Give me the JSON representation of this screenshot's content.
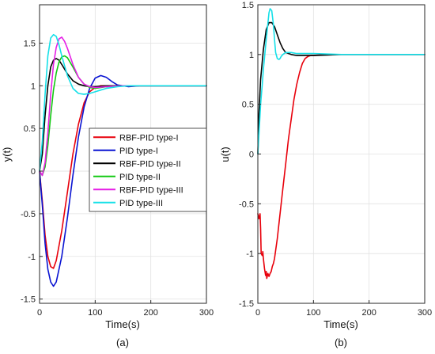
{
  "chart_data": [
    {
      "type": "line",
      "subtitle": "(a)",
      "xlabel": "Time(s)",
      "ylabel": "y(t)",
      "xlim": [
        0,
        300
      ],
      "ylim": [
        -1.55,
        1.95
      ],
      "xticks": [
        0,
        100,
        200,
        300
      ],
      "yticks": [
        -1.5,
        -1,
        -0.5,
        0,
        0.5,
        1,
        1.5
      ],
      "ytick_labels": [
        "-1.5",
        "-1",
        "-0.5",
        "0",
        "0.5",
        "1",
        "1.5"
      ],
      "grid": true,
      "legend_position": "center-right",
      "series": [
        {
          "name": "RBF-PID type-I",
          "color": "#e8000b",
          "x": [
            0,
            5,
            10,
            15,
            20,
            25,
            30,
            40,
            50,
            60,
            70,
            80,
            90,
            100,
            110,
            120,
            140,
            160,
            200,
            250,
            300
          ],
          "y": [
            0,
            -0.35,
            -0.75,
            -1.0,
            -1.12,
            -1.14,
            -1.05,
            -0.7,
            -0.25,
            0.2,
            0.55,
            0.8,
            0.93,
            0.98,
            1.0,
            1.0,
            1.0,
            1.0,
            1.0,
            1.0,
            1.0
          ]
        },
        {
          "name": "PID type-I",
          "color": "#0a14d2",
          "x": [
            0,
            5,
            10,
            15,
            20,
            25,
            30,
            40,
            50,
            60,
            70,
            80,
            90,
            100,
            110,
            120,
            130,
            140,
            160,
            180,
            200,
            250,
            300
          ],
          "y": [
            0,
            -0.4,
            -0.85,
            -1.15,
            -1.3,
            -1.35,
            -1.3,
            -1.0,
            -0.55,
            -0.05,
            0.4,
            0.75,
            0.97,
            1.09,
            1.12,
            1.1,
            1.05,
            1.01,
            0.99,
            1.0,
            1.0,
            1.0,
            1.0
          ]
        },
        {
          "name": "RBF-PID type-II",
          "color": "#000000",
          "x": [
            0,
            5,
            10,
            15,
            20,
            25,
            30,
            35,
            40,
            50,
            60,
            70,
            80,
            90,
            100,
            120,
            150,
            200,
            300
          ],
          "y": [
            0,
            0.2,
            0.65,
            1.0,
            1.22,
            1.3,
            1.32,
            1.3,
            1.25,
            1.14,
            1.06,
            1.02,
            1.0,
            0.99,
            0.99,
            1.0,
            1.0,
            1.0,
            1.0
          ]
        },
        {
          "name": "PID type-II",
          "color": "#12c912",
          "x": [
            0,
            5,
            10,
            15,
            20,
            25,
            30,
            35,
            40,
            45,
            50,
            60,
            70,
            80,
            90,
            100,
            120,
            150,
            200,
            300
          ],
          "y": [
            0,
            -0.05,
            0.05,
            0.3,
            0.65,
            0.95,
            1.15,
            1.28,
            1.34,
            1.35,
            1.33,
            1.22,
            1.1,
            1.02,
            0.98,
            0.97,
            0.99,
            1.0,
            1.0,
            1.0
          ]
        },
        {
          "name": "RBF-PID type-III",
          "color": "#e61ee6",
          "x": [
            0,
            5,
            10,
            15,
            20,
            25,
            30,
            35,
            40,
            45,
            50,
            60,
            70,
            80,
            90,
            100,
            120,
            150,
            200,
            300
          ],
          "y": [
            0,
            -0.05,
            0.1,
            0.45,
            0.9,
            1.25,
            1.45,
            1.55,
            1.57,
            1.52,
            1.44,
            1.25,
            1.1,
            1.02,
            0.99,
            0.98,
            0.99,
            1.0,
            1.0,
            1.0
          ]
        },
        {
          "name": "PID type-III",
          "color": "#16e0e8",
          "x": [
            0,
            5,
            10,
            15,
            20,
            25,
            30,
            35,
            40,
            50,
            60,
            70,
            80,
            90,
            100,
            110,
            120,
            140,
            160,
            200,
            300
          ],
          "y": [
            0,
            0.35,
            0.9,
            1.35,
            1.56,
            1.6,
            1.58,
            1.48,
            1.35,
            1.12,
            0.97,
            0.91,
            0.9,
            0.91,
            0.93,
            0.95,
            0.97,
            0.99,
            1.0,
            1.0,
            1.0
          ]
        }
      ]
    },
    {
      "type": "line",
      "subtitle": "(b)",
      "xlabel": "Time(s)",
      "ylabel": "u(t)",
      "xlim": [
        0,
        300
      ],
      "ylim": [
        -1.5,
        1.5
      ],
      "xticks": [
        0,
        100,
        200,
        300
      ],
      "yticks": [
        -1.5,
        -1,
        -0.5,
        0,
        0.5,
        1,
        1.5
      ],
      "ytick_labels": [
        "-1.5",
        "-1",
        "-0.5",
        "0",
        "0.5",
        "1",
        "1.5"
      ],
      "grid": true,
      "series": [
        {
          "color": "#e8000b",
          "x": [
            0,
            2,
            4,
            5,
            6,
            8,
            9,
            10,
            12,
            14,
            15,
            16,
            18,
            20,
            22,
            24,
            26,
            28,
            30,
            35,
            40,
            45,
            50,
            55,
            60,
            65,
            70,
            75,
            80,
            85,
            90,
            95,
            100,
            120,
            150,
            200,
            300
          ],
          "y": [
            -0.6,
            -0.65,
            -0.6,
            -0.75,
            -1.0,
            -1.02,
            -0.98,
            -1.05,
            -1.15,
            -1.22,
            -1.18,
            -1.25,
            -1.2,
            -1.23,
            -1.2,
            -1.18,
            -1.13,
            -1.1,
            -1.05,
            -0.85,
            -0.6,
            -0.35,
            -0.1,
            0.15,
            0.35,
            0.55,
            0.7,
            0.82,
            0.91,
            0.96,
            0.98,
            0.99,
            0.99,
            1.0,
            1.0,
            1.0,
            1.0
          ]
        },
        {
          "color": "#000000",
          "x": [
            0,
            2,
            5,
            10,
            15,
            20,
            25,
            30,
            35,
            40,
            45,
            50,
            60,
            70,
            80,
            100,
            150,
            200,
            300
          ],
          "y": [
            0,
            0.4,
            0.75,
            1.05,
            1.25,
            1.32,
            1.32,
            1.28,
            1.2,
            1.12,
            1.06,
            1.02,
            1.0,
            0.99,
            0.99,
            0.99,
            1.0,
            1.0,
            1.0
          ]
        },
        {
          "color": "#16e0e8",
          "x": [
            0,
            2,
            5,
            8,
            10,
            15,
            20,
            22,
            25,
            28,
            30,
            32,
            35,
            38,
            40,
            42,
            45,
            50,
            55,
            60,
            70,
            80,
            100,
            150,
            200,
            300
          ],
          "y": [
            0,
            0.2,
            0.5,
            0.7,
            0.85,
            1.15,
            1.42,
            1.46,
            1.44,
            1.3,
            1.15,
            1.02,
            0.96,
            0.95,
            0.96,
            0.98,
            1.0,
            1.02,
            1.02,
            1.02,
            1.01,
            1.01,
            1.01,
            1.0,
            1.0,
            1.0
          ]
        }
      ]
    }
  ]
}
